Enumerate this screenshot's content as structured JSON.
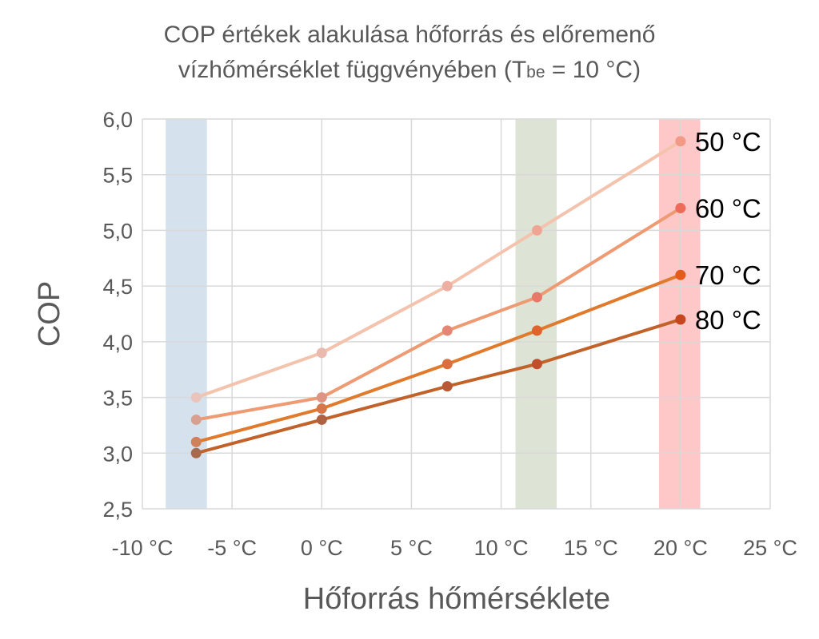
{
  "title": {
    "line1": "COP értékek alakulása hőforrás és előremenő",
    "line2_main": "vízhőmérséklet függvényében (T",
    "line2_sub": "be",
    "line2_tail": " = 10 °C)"
  },
  "chart_data": {
    "type": "line",
    "title": "COP értékek alakulása hőforrás és előremenő vízhőmérséklet függvényében (Tbe = 10 °C)",
    "xlabel": "Hőforrás hőmérséklete",
    "ylabel": "COP",
    "xlim": [
      -10,
      25
    ],
    "ylim": [
      2.5,
      6.0
    ],
    "x_ticks": [
      -10,
      -5,
      0,
      5,
      10,
      15,
      20,
      25
    ],
    "x_tick_labels": [
      "-10 °C",
      "-5 °C",
      "0 °C",
      "5 °C",
      "10 °C",
      "15 °C",
      "20 °C",
      "25 °C"
    ],
    "y_ticks": [
      2.5,
      3.0,
      3.5,
      4.0,
      4.5,
      5.0,
      5.5,
      6.0
    ],
    "y_tick_labels": [
      "2,5",
      "3,0",
      "3,5",
      "4,0",
      "4,5",
      "5,0",
      "5,5",
      "6,0"
    ],
    "grid": true,
    "x": [
      -7,
      0,
      7,
      12,
      20
    ],
    "series": [
      {
        "name": "50 °C",
        "values": [
          3.5,
          3.9,
          4.5,
          5.0,
          5.8
        ],
        "line_color": "#f4c3ad",
        "marker_color_start": "#e8c4bd",
        "marker_color_end": "#f29a86"
      },
      {
        "name": "60 °C",
        "values": [
          3.3,
          3.5,
          4.1,
          4.4,
          5.2
        ],
        "line_color": "#ee9a72",
        "marker_color_start": "#d8a091",
        "marker_color_end": "#ee6b5a"
      },
      {
        "name": "70 °C",
        "values": [
          3.1,
          3.4,
          3.8,
          4.1,
          4.6
        ],
        "line_color": "#e07a2c",
        "marker_color_start": "#d0805b",
        "marker_color_end": "#e45b1c"
      },
      {
        "name": "80 °C",
        "values": [
          3.0,
          3.3,
          3.6,
          3.8,
          4.2
        ],
        "line_color": "#c0622a",
        "marker_color_start": "#a86a4c",
        "marker_color_end": "#c8461e"
      }
    ],
    "bands": [
      {
        "x_from": -8.7,
        "x_to": -6.4,
        "color": "#d6e1ee"
      },
      {
        "x_from": 10.8,
        "x_to": 13.1,
        "color": "#dde4d6"
      },
      {
        "x_from": 18.8,
        "x_to": 21.1,
        "color": "#ffc8c8"
      }
    ]
  }
}
